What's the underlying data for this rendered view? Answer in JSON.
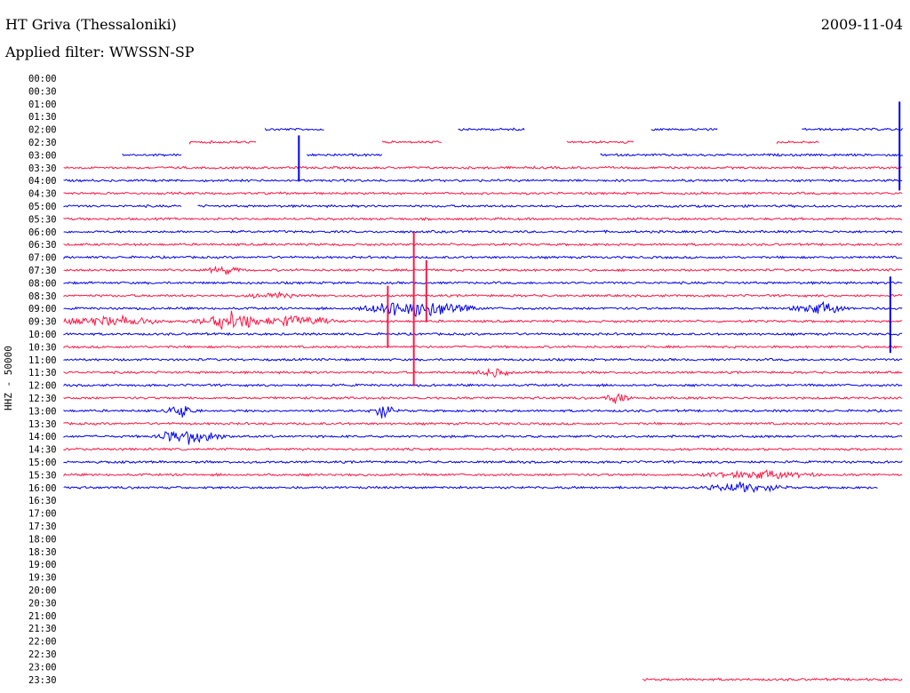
{
  "header": {
    "station": "HT Griva (Thessaloniki)",
    "date": "2009-11-04",
    "filter": "Applied filter: WWSSN-SP"
  },
  "colors": {
    "odd_trace": "#ff1744",
    "even_trace": "#0000ee"
  },
  "chart_data": {
    "type": "line",
    "title": "HT Griva (Thessaloniki)",
    "ylabel": "HHZ - 50000",
    "row_labels": [
      "00:00",
      "00:30",
      "01:00",
      "01:30",
      "02:00",
      "02:30",
      "03:00",
      "03:30",
      "04:00",
      "04:30",
      "05:00",
      "05:30",
      "06:00",
      "06:30",
      "07:00",
      "07:30",
      "08:00",
      "08:30",
      "09:00",
      "09:30",
      "10:00",
      "10:30",
      "11:00",
      "11:30",
      "12:00",
      "12:30",
      "13:00",
      "13:30",
      "14:00",
      "14:30",
      "15:00",
      "15:30",
      "16:00",
      "16:30",
      "17:00",
      "17:30",
      "18:00",
      "18:30",
      "19:00",
      "19:30",
      "20:00",
      "20:30",
      "21:00",
      "21:30",
      "22:00",
      "22:30",
      "23:00",
      "23:30"
    ],
    "traces": [
      {
        "row": "02:00",
        "color": "even",
        "segments": [
          [
            0.24,
            0.31
          ],
          [
            0.47,
            0.55
          ],
          [
            0.7,
            0.78
          ],
          [
            0.88,
            1.0
          ]
        ]
      },
      {
        "row": "02:30",
        "color": "odd",
        "segments": [
          [
            0.15,
            0.23
          ],
          [
            0.38,
            0.45
          ],
          [
            0.6,
            0.68
          ],
          [
            0.85,
            0.9
          ]
        ]
      },
      {
        "row": "03:00",
        "color": "even",
        "segments": [
          [
            0.07,
            0.14
          ],
          [
            0.29,
            0.38
          ],
          [
            0.64,
            1.0
          ]
        ]
      },
      {
        "row": "03:30",
        "color": "odd",
        "segments": [
          [
            0.0,
            1.0
          ]
        ]
      },
      {
        "row": "04:00",
        "color": "even",
        "segments": [
          [
            0.0,
            1.0
          ]
        ]
      },
      {
        "row": "04:30",
        "color": "odd",
        "segments": [
          [
            0.0,
            1.0
          ]
        ]
      },
      {
        "row": "05:00",
        "color": "even",
        "segments": [
          [
            0.0,
            0.14
          ],
          [
            0.16,
            1.0
          ]
        ]
      },
      {
        "row": "05:30",
        "color": "odd",
        "segments": [
          [
            0.0,
            1.0
          ]
        ]
      },
      {
        "row": "06:00",
        "color": "even",
        "segments": [
          [
            0.0,
            1.0
          ]
        ]
      },
      {
        "row": "06:30",
        "color": "odd",
        "segments": [
          [
            0.0,
            1.0
          ]
        ]
      },
      {
        "row": "07:00",
        "color": "even",
        "segments": [
          [
            0.0,
            1.0
          ]
        ]
      },
      {
        "row": "07:30",
        "color": "odd",
        "segments": [
          [
            0.0,
            1.0
          ]
        ]
      },
      {
        "row": "08:00",
        "color": "even",
        "segments": [
          [
            0.0,
            1.0
          ]
        ]
      },
      {
        "row": "08:30",
        "color": "odd",
        "segments": [
          [
            0.0,
            1.0
          ]
        ]
      },
      {
        "row": "09:00",
        "color": "even",
        "segments": [
          [
            0.0,
            1.0
          ]
        ]
      },
      {
        "row": "09:30",
        "color": "odd",
        "segments": [
          [
            0.0,
            1.0
          ]
        ]
      },
      {
        "row": "10:00",
        "color": "even",
        "segments": [
          [
            0.0,
            1.0
          ]
        ]
      },
      {
        "row": "10:30",
        "color": "odd",
        "segments": [
          [
            0.0,
            1.0
          ]
        ]
      },
      {
        "row": "11:00",
        "color": "even",
        "segments": [
          [
            0.0,
            1.0
          ]
        ]
      },
      {
        "row": "11:30",
        "color": "odd",
        "segments": [
          [
            0.0,
            1.0
          ]
        ]
      },
      {
        "row": "12:00",
        "color": "even",
        "segments": [
          [
            0.0,
            1.0
          ]
        ]
      },
      {
        "row": "12:30",
        "color": "odd",
        "segments": [
          [
            0.0,
            1.0
          ]
        ]
      },
      {
        "row": "13:00",
        "color": "even",
        "segments": [
          [
            0.0,
            1.0
          ]
        ]
      },
      {
        "row": "13:30",
        "color": "odd",
        "segments": [
          [
            0.0,
            1.0
          ]
        ]
      },
      {
        "row": "14:00",
        "color": "even",
        "segments": [
          [
            0.0,
            1.0
          ]
        ]
      },
      {
        "row": "14:30",
        "color": "odd",
        "segments": [
          [
            0.0,
            1.0
          ]
        ]
      },
      {
        "row": "15:00",
        "color": "even",
        "segments": [
          [
            0.0,
            1.0
          ]
        ]
      },
      {
        "row": "15:30",
        "color": "odd",
        "segments": [
          [
            0.0,
            1.0
          ]
        ]
      },
      {
        "row": "16:00",
        "color": "even",
        "segments": [
          [
            0.0,
            0.97
          ]
        ]
      },
      {
        "row": "23:30",
        "color": "odd",
        "segments": [
          [
            0.69,
            1.0
          ]
        ]
      }
    ],
    "events": [
      {
        "row": "09:00",
        "at": 0.42,
        "amp": 10,
        "width": 0.08
      },
      {
        "row": "09:00",
        "at": 0.9,
        "amp": 6,
        "width": 0.04
      },
      {
        "row": "09:30",
        "at": 0.05,
        "amp": 5,
        "width": 0.08
      },
      {
        "row": "09:30",
        "at": 0.2,
        "amp": 9,
        "width": 0.05
      },
      {
        "row": "09:30",
        "at": 0.28,
        "amp": 6,
        "width": 0.05
      },
      {
        "row": "07:30",
        "at": 0.19,
        "amp": 4,
        "width": 0.03
      },
      {
        "row": "08:30",
        "at": 0.25,
        "amp": 3,
        "width": 0.04
      },
      {
        "row": "11:30",
        "at": 0.51,
        "amp": 4,
        "width": 0.03
      },
      {
        "row": "12:30",
        "at": 0.66,
        "amp": 5,
        "width": 0.02
      },
      {
        "row": "13:00",
        "at": 0.14,
        "amp": 7,
        "width": 0.02
      },
      {
        "row": "13:00",
        "at": 0.38,
        "amp": 7,
        "width": 0.02
      },
      {
        "row": "14:00",
        "at": 0.15,
        "amp": 8,
        "width": 0.05
      },
      {
        "row": "15:30",
        "at": 0.83,
        "amp": 4,
        "width": 0.08
      },
      {
        "row": "16:00",
        "at": 0.81,
        "amp": 5,
        "width": 0.06
      }
    ],
    "spikes": [
      {
        "row": "08:30",
        "at": 0.417,
        "up": 72,
        "down": 102
      },
      {
        "row": "08:30",
        "at": 0.432,
        "up": 40,
        "down": 30
      },
      {
        "row": "09:30",
        "at": 0.386,
        "up": 40,
        "down": 30
      },
      {
        "row": "03:00",
        "at": 0.28,
        "up": 22,
        "down": 30
      },
      {
        "row": "03:00",
        "at": 0.996,
        "up": 60,
        "down": 40
      },
      {
        "row": "09:00",
        "at": 0.985,
        "up": 36,
        "down": 50
      }
    ]
  }
}
